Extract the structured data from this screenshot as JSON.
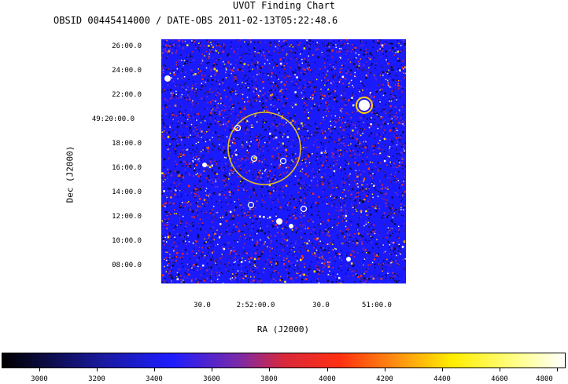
{
  "title": "UVOT Finding Chart",
  "subtitle": "OBSID 00445414000 / DATE-OBS 2011-02-13T05:22:48.6",
  "axes": {
    "dec_label": "Dec (J2000)",
    "ra_label": "RA (J2000)",
    "dec_ticks": [
      "26:00.0",
      "24:00.0",
      "22:00.0",
      "49:20:00.0",
      "18:00.0",
      "16:00.0",
      "14:00.0",
      "12:00.0",
      "10:00.0",
      "08:00.0"
    ],
    "ra_ticks": [
      "30.0",
      "2:52:00.0",
      "30.0",
      "51:00.0"
    ]
  },
  "colorbar": {
    "ticks": [
      "3000",
      "3200",
      "3400",
      "3600",
      "3800",
      "4000",
      "4200",
      "4400",
      "4600",
      "4800"
    ]
  },
  "colors": {
    "background": "#1a1aff",
    "circle": "#e0c020",
    "marker": "#ffffff"
  }
}
